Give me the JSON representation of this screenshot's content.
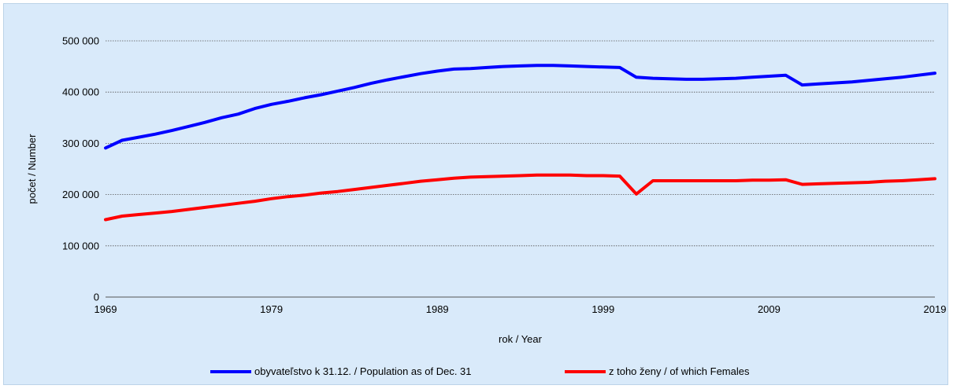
{
  "chart_data": {
    "type": "line",
    "xlabel": "rok / Year",
    "ylabel": "počet / Number",
    "xlim": [
      1969,
      2019
    ],
    "ylim": [
      0,
      500000
    ],
    "y_ticks": [
      0,
      100000,
      200000,
      300000,
      400000,
      500000
    ],
    "y_tick_labels": [
      "0",
      "100 000",
      "200 000",
      "300 000",
      "400 000",
      "500 000"
    ],
    "x_ticks": [
      1969,
      1979,
      1989,
      1999,
      2009,
      2019
    ],
    "x_tick_labels": [
      "1969",
      "1979",
      "1989",
      "1999",
      "2009",
      "2019"
    ],
    "grid": "horizontal",
    "legend_position": "bottom",
    "x": [
      1969,
      1970,
      1971,
      1972,
      1973,
      1974,
      1975,
      1976,
      1977,
      1978,
      1979,
      1980,
      1981,
      1982,
      1983,
      1984,
      1985,
      1986,
      1987,
      1988,
      1989,
      1990,
      1991,
      1992,
      1993,
      1994,
      1995,
      1996,
      1997,
      1998,
      1999,
      2000,
      2001,
      2002,
      2003,
      2004,
      2005,
      2006,
      2007,
      2008,
      2009,
      2010,
      2011,
      2012,
      2013,
      2014,
      2015,
      2016,
      2017,
      2018,
      2019
    ],
    "series": [
      {
        "name": "obyvateľstvo k 31.12. / Population as of Dec. 31",
        "color": "#0000ff",
        "values": [
          291000,
          306000,
          312000,
          318000,
          325000,
          333000,
          341000,
          350000,
          357000,
          368000,
          376000,
          382000,
          389000,
          395000,
          402000,
          409000,
          417000,
          424000,
          430000,
          436000,
          441000,
          445000,
          446000,
          448000,
          450000,
          451000,
          452000,
          452000,
          451000,
          450000,
          449000,
          448000,
          429000,
          427000,
          426000,
          425000,
          425000,
          426000,
          427000,
          429000,
          431000,
          433000,
          414000,
          416000,
          418000,
          420000,
          423000,
          426000,
          429000,
          433000,
          437000
        ]
      },
      {
        "name": "z toho ženy / of which Females",
        "color": "#ff0000",
        "values": [
          151000,
          158000,
          161000,
          164000,
          167000,
          171000,
          175000,
          179000,
          183000,
          187000,
          192000,
          196000,
          199000,
          203000,
          206000,
          210000,
          214000,
          218000,
          222000,
          226000,
          229000,
          232000,
          234000,
          235000,
          236000,
          237000,
          238000,
          238000,
          238000,
          237000,
          237000,
          236000,
          201000,
          227000,
          227000,
          227000,
          227000,
          227000,
          227000,
          228000,
          228000,
          229000,
          220000,
          221000,
          222000,
          223000,
          224000,
          226000,
          227000,
          229000,
          231000
        ]
      }
    ]
  }
}
